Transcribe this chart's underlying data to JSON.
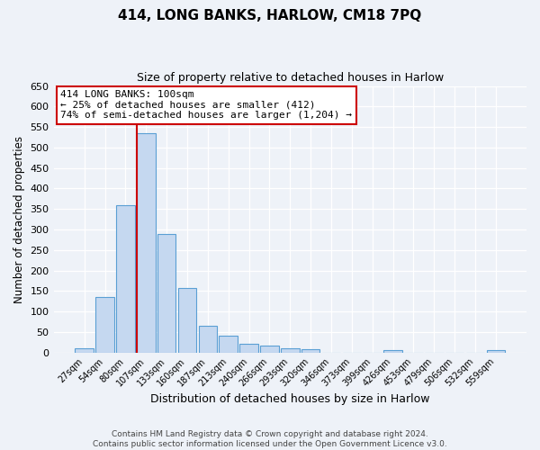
{
  "title": "414, LONG BANKS, HARLOW, CM18 7PQ",
  "subtitle": "Size of property relative to detached houses in Harlow",
  "xlabel": "Distribution of detached houses by size in Harlow",
  "ylabel": "Number of detached properties",
  "bar_color": "#c5d8f0",
  "bar_edge_color": "#5a9fd4",
  "background_color": "#eef2f8",
  "grid_color": "#ffffff",
  "categories": [
    "27sqm",
    "54sqm",
    "80sqm",
    "107sqm",
    "133sqm",
    "160sqm",
    "187sqm",
    "213sqm",
    "240sqm",
    "266sqm",
    "293sqm",
    "320sqm",
    "346sqm",
    "373sqm",
    "399sqm",
    "426sqm",
    "453sqm",
    "479sqm",
    "506sqm",
    "532sqm",
    "559sqm"
  ],
  "values": [
    11,
    135,
    360,
    535,
    290,
    158,
    65,
    41,
    22,
    16,
    10,
    8,
    0,
    0,
    0,
    5,
    0,
    0,
    0,
    0,
    5
  ],
  "ylim": [
    0,
    650
  ],
  "yticks": [
    0,
    50,
    100,
    150,
    200,
    250,
    300,
    350,
    400,
    450,
    500,
    550,
    600,
    650
  ],
  "vline_color": "#cc0000",
  "annotation_title": "414 LONG BANKS: 100sqm",
  "annotation_line1": "← 25% of detached houses are smaller (412)",
  "annotation_line2": "74% of semi-detached houses are larger (1,204) →",
  "annotation_box_color": "#ffffff",
  "annotation_box_edge_color": "#cc0000",
  "footer_line1": "Contains HM Land Registry data © Crown copyright and database right 2024.",
  "footer_line2": "Contains public sector information licensed under the Open Government Licence v3.0."
}
